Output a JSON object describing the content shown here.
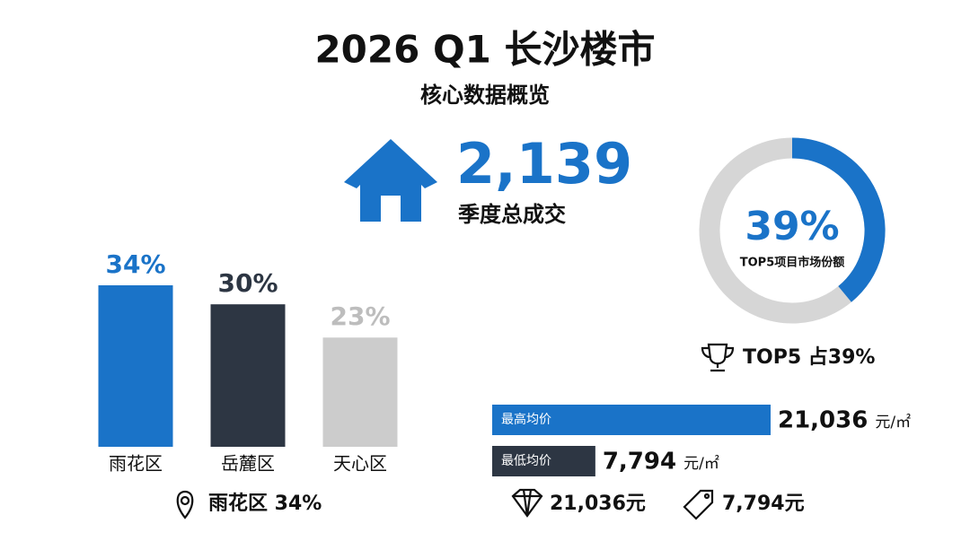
{
  "title": "2026 Q1 长沙楼市",
  "subtitle": "核心数据概览",
  "kpi": {
    "value": "2,139",
    "label": "季度总成交"
  },
  "chart_data": [
    {
      "type": "bar",
      "categories": [
        "雨花区",
        "岳麓区",
        "天心区"
      ],
      "values": [
        34,
        30,
        23
      ],
      "value_labels": [
        "34%",
        "30%",
        "23%"
      ],
      "colors": [
        "#1a73c8",
        "#2d3643",
        "#cccccc"
      ],
      "annotation": "雨花区 34%"
    },
    {
      "type": "donut",
      "values": [
        39
      ],
      "value_labels": [
        "39%"
      ],
      "color": "#1a73c8",
      "track_color": "#d6d6d6",
      "label": "TOP5项目市场份额",
      "annotation": "TOP5 占39%"
    },
    {
      "type": "hbar",
      "categories": [
        "最高均价",
        "最低均价"
      ],
      "values": [
        21036,
        7794
      ],
      "value_labels": [
        "21,036",
        "7,794"
      ],
      "unit": "元/㎡",
      "colors": [
        "#1a73c8",
        "#2d3643"
      ],
      "annotations": [
        "21,036元",
        "7,794元"
      ]
    }
  ]
}
